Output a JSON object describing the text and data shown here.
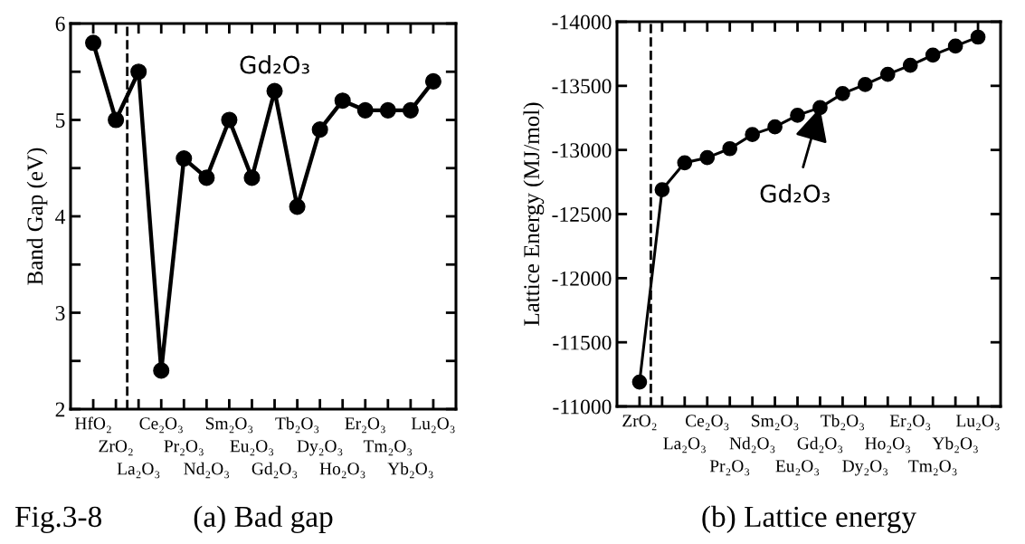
{
  "chart_data": [
    {
      "type": "line",
      "ylabel": "Band Gap (eV)",
      "categories": [
        "HfO₂",
        "ZrO₂",
        "La₂O₃",
        "Ce₂O₃",
        "Pr₂O₃",
        "Nd₂O₃",
        "Sm₂O₃",
        "Eu₂O₃",
        "Gd₂O₃",
        "Tb₂O₃",
        "Dy₂O₃",
        "Ho₂O₃",
        "Er₂O₃",
        "Tm₂O₃",
        "Yb₂O₃",
        "Lu₂O₃"
      ],
      "series": [
        {
          "color": "#000000",
          "values": [
            5.8,
            5.0,
            5.5,
            2.4,
            4.6,
            4.4,
            5.0,
            4.4,
            5.3,
            4.1,
            4.9,
            5.2,
            5.1,
            5.1,
            5.1,
            5.4
          ]
        }
      ],
      "ylim": [
        2,
        6
      ],
      "yticks": [
        2,
        {
          "value": 2.5,
          "label": null
        },
        3,
        {
          "value": 3.5,
          "label": null
        },
        4,
        {
          "value": 4.5,
          "label": null
        },
        5,
        {
          "value": 5.5,
          "label": null
        },
        6
      ],
      "annotations": [
        {
          "text": "Gd₂O₃",
          "x": "Gd₂O₃",
          "y": 5.3
        },
        "Fig.3-8",
        "(a) Bad gap"
      ],
      "marker": "circle",
      "line_style": "solid"
    },
    {
      "type": "line",
      "ylabel": "Lattice Energy (MJ/mol)",
      "categories": [
        "ZrO₂",
        null,
        "La₂O₃",
        "Ce₂O₃",
        "Pr₂O₃",
        "Nd₂O₃",
        "Sm₂O₃",
        "Eu₂O₃",
        "Gd₂O₃",
        "Tb₂O₃",
        "Dy₂O₃",
        "Ho₂O₃",
        "Er₂O₃",
        "Tm₂O₃",
        "Yb₂O₃",
        "Lu₂O₃"
      ],
      "series": [
        {
          "color": "#000000",
          "values": [
            -11190,
            -12690,
            -12900,
            -12940,
            -13010,
            -13120,
            -13180,
            -13270,
            -13330,
            -13440,
            -13510,
            -13590,
            -13660,
            -13740,
            -13810,
            -13880
          ]
        }
      ],
      "ylim": [
        -11000,
        -14000
      ],
      "yticks": [
        -11000,
        -11500,
        -12000,
        -12500,
        -13000,
        -13500,
        -14000
      ],
      "annotations": [
        {
          "text": "Gd₂O₃",
          "x": "Gd₂O₃",
          "y": -13330
        },
        "(b) Lattice energy"
      ],
      "marker": "circle",
      "line_style": "solid"
    }
  ]
}
